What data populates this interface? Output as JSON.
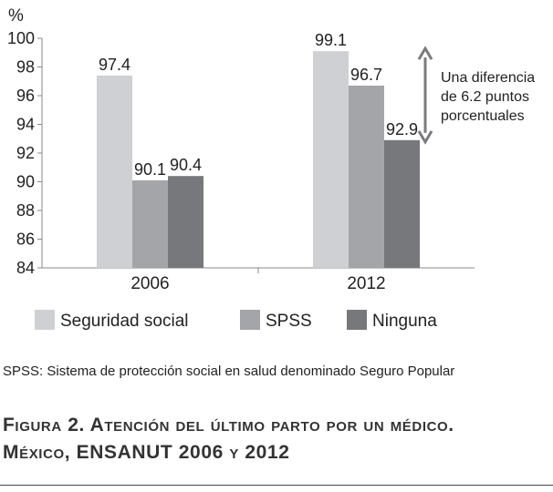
{
  "chart_data": {
    "type": "bar",
    "unit_label": "%",
    "categories": [
      "2006",
      "2012"
    ],
    "series": [
      {
        "name": "Seguridad social",
        "values": [
          97.4,
          99.1
        ],
        "labels": [
          "97.4",
          "99.1"
        ],
        "color": "#cfd0d3"
      },
      {
        "name": "SPSS",
        "values": [
          90.1,
          96.7
        ],
        "labels": [
          "90.1",
          "96.7"
        ],
        "color": "#a4a5a8"
      },
      {
        "name": "Ninguna",
        "values": [
          90.4,
          92.9
        ],
        "labels": [
          "90.4",
          "92.9"
        ],
        "color": "#77787b"
      }
    ],
    "ylim": [
      84,
      100
    ],
    "yticks": [
      84,
      86,
      88,
      90,
      92,
      94,
      96,
      98,
      100
    ],
    "annotation": {
      "lines": [
        "Una diferencia",
        "de 6.2 puntos",
        "porcentuales"
      ],
      "from_value": 99.1,
      "to_value": 92.9,
      "category": "2012"
    },
    "legend_position": "bottom"
  },
  "footnote": "SPSS: Sistema de protección social en salud denominado Seguro Popular",
  "caption": {
    "line1": "Figura 2. Atención del último parto por un médico.",
    "line2": "México, ENSANUT 2006 y 2012"
  },
  "colors": {
    "axis": "#888888",
    "arrow": "#7a7b7e",
    "text": "#222222"
  }
}
